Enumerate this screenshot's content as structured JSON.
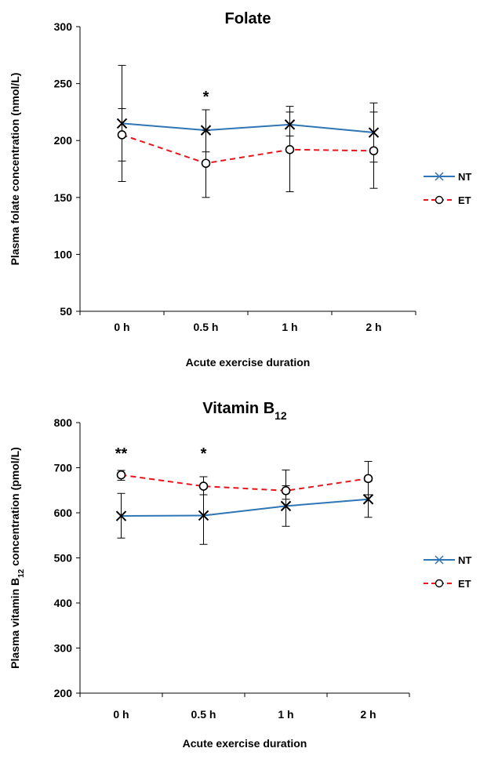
{
  "chart_data": [
    {
      "type": "line",
      "title": "Folate",
      "title_sub": "",
      "xlabel": "Acute exercise duration",
      "ylabel": "Plasma folate concentration (nmol/L)",
      "ylabel_sub": "",
      "ylabel_rest": "",
      "categories": [
        "0 h",
        "0.5 h",
        "1 h",
        "2 h"
      ],
      "yticks": [
        "50",
        "100",
        "150",
        "200",
        "250",
        "300"
      ],
      "ylim": [
        50,
        300
      ],
      "annotations": [
        "",
        "*",
        "",
        ""
      ],
      "legend_position": "right",
      "series": [
        {
          "name": "NT",
          "color": "#2e75b6",
          "marker": "x",
          "dash": "solid",
          "values": [
            215,
            209,
            214,
            207
          ],
          "err_low": [
            182,
            190,
            204,
            181
          ],
          "err_high": [
            228,
            227,
            230,
            233
          ]
        },
        {
          "name": "ET",
          "color": "#e8141b",
          "marker": "circle",
          "dash": "dashed",
          "values": [
            205,
            180,
            192,
            191
          ],
          "err_low": [
            164,
            150,
            155,
            158
          ],
          "err_high": [
            266,
            209,
            225,
            225
          ]
        }
      ]
    },
    {
      "type": "line",
      "title": "Vitamin B",
      "title_sub": "12",
      "xlabel": "Acute exercise duration",
      "ylabel": "Plasma vitamin B",
      "ylabel_sub": "12",
      "ylabel_rest": " concentration (pmol/L)",
      "categories": [
        "0 h",
        "0.5 h",
        "1 h",
        "2 h"
      ],
      "yticks": [
        "200",
        "300",
        "400",
        "500",
        "600",
        "700",
        "800"
      ],
      "ylim": [
        200,
        800
      ],
      "annotations": [
        "**",
        "*",
        "",
        ""
      ],
      "legend_position": "right",
      "series": [
        {
          "name": "NT",
          "color": "#2e75b6",
          "marker": "x",
          "dash": "solid",
          "values": [
            593,
            594,
            615,
            630
          ],
          "err_low": [
            544,
            530,
            570,
            590
          ],
          "err_high": [
            643,
            640,
            660,
            670
          ]
        },
        {
          "name": "ET",
          "color": "#e8141b",
          "marker": "circle",
          "dash": "dashed",
          "values": [
            684,
            659,
            649,
            676
          ],
          "err_low": [
            672,
            640,
            630,
            640
          ],
          "err_high": [
            694,
            680,
            695,
            714
          ]
        }
      ]
    }
  ]
}
